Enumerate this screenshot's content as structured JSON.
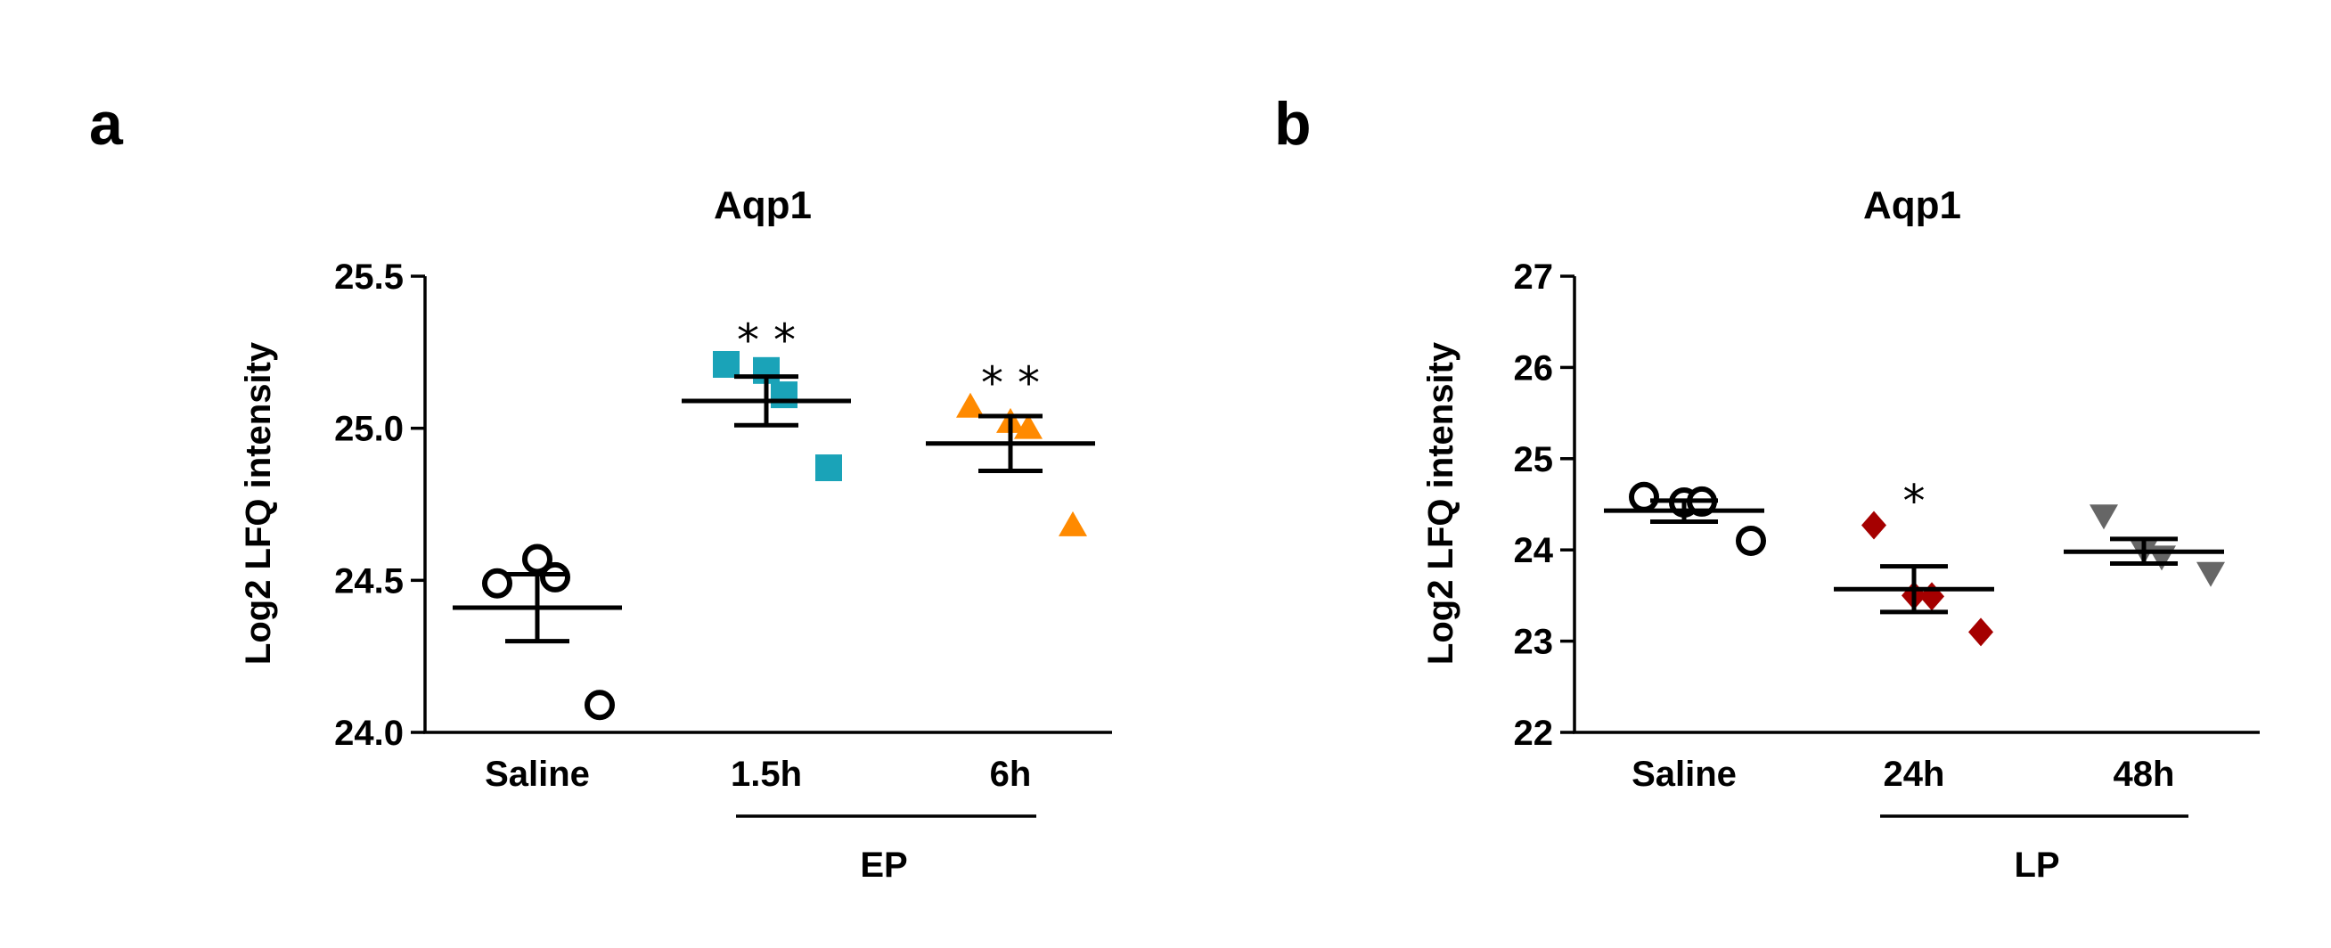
{
  "chart_data": [
    {
      "panel": "a",
      "type": "scatter",
      "title": "Aqp1",
      "ylabel": "Log2 LFQ intensity",
      "xlabel": "",
      "ylim": [
        24.0,
        25.5
      ],
      "yticks": [
        "24.0",
        "24.5",
        "25.0",
        "25.5"
      ],
      "categories": [
        "Saline",
        "1.5h",
        "6h"
      ],
      "group_label": "EP",
      "group_spans": [
        "1.5h",
        "6h"
      ],
      "series": [
        {
          "name": "Saline",
          "marker": "circle-open",
          "color": "#000000",
          "points": [
            24.49,
            24.57,
            24.51,
            24.09
          ],
          "mean": 24.41,
          "sem_low": 24.3,
          "sem_high": 24.52,
          "significance": ""
        },
        {
          "name": "1.5h",
          "marker": "square",
          "color": "#1aa3b8",
          "points": [
            25.21,
            25.19,
            25.11,
            24.87
          ],
          "mean": 25.09,
          "sem_low": 25.01,
          "sem_high": 25.17,
          "significance": "**"
        },
        {
          "name": "6h",
          "marker": "triangle-up",
          "color": "#ff8a00",
          "points": [
            25.07,
            25.02,
            25.0,
            24.68
          ],
          "mean": 24.95,
          "sem_low": 24.86,
          "sem_high": 25.04,
          "significance": "**"
        }
      ]
    },
    {
      "panel": "b",
      "type": "scatter",
      "title": "Aqp1",
      "ylabel": "Log2 LFQ intensity",
      "xlabel": "",
      "ylim": [
        22,
        27
      ],
      "yticks": [
        "22",
        "23",
        "24",
        "25",
        "26",
        "27"
      ],
      "categories": [
        "Saline",
        "24h",
        "48h"
      ],
      "group_label": "LP",
      "group_spans": [
        "24h",
        "48h"
      ],
      "series": [
        {
          "name": "Saline",
          "marker": "circle-open",
          "color": "#000000",
          "points": [
            24.58,
            24.52,
            24.53,
            24.1
          ],
          "mean": 24.43,
          "sem_low": 24.31,
          "sem_high": 24.54,
          "significance": ""
        },
        {
          "name": "24h",
          "marker": "diamond",
          "color": "#a50000",
          "points": [
            24.27,
            23.5,
            23.49,
            23.1
          ],
          "mean": 23.57,
          "sem_low": 23.32,
          "sem_high": 23.82,
          "significance": "*"
        },
        {
          "name": "48h",
          "marker": "triangle-down",
          "color": "#666666",
          "points": [
            24.38,
            24.0,
            23.93,
            23.75
          ],
          "mean": 23.98,
          "sem_low": 23.85,
          "sem_high": 24.12,
          "significance": ""
        }
      ]
    }
  ]
}
